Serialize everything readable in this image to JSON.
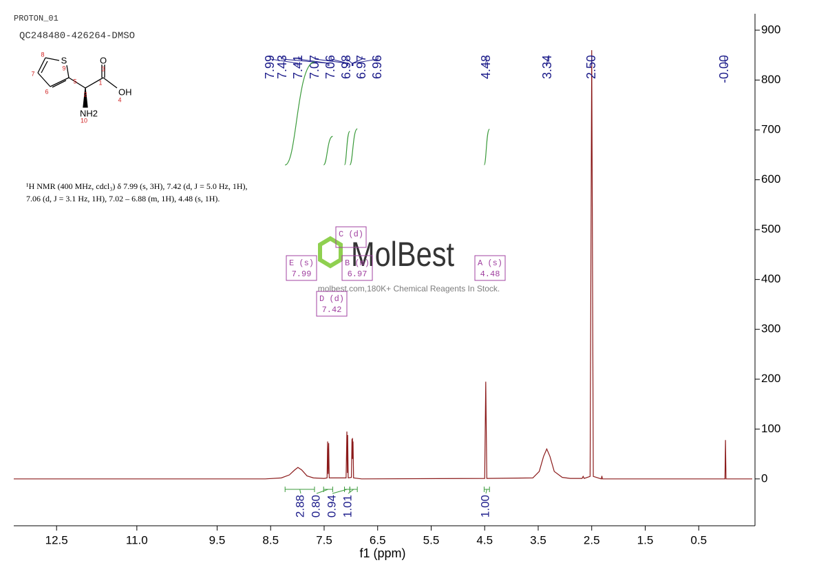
{
  "header": {
    "experiment": "PROTON_01",
    "sample": "QC248480-426264-DMSO"
  },
  "structure": {
    "atoms": [
      "S",
      "O",
      "OH",
      "NH2"
    ],
    "locants": [
      "1",
      "2",
      "3",
      "4",
      "5",
      "6",
      "7",
      "8",
      "9",
      "10"
    ]
  },
  "report": [
    "¹H NMR (400 MHz, cdcl₃) δ 7.99 (s, 3H), 7.42 (d, J = 5.0 Hz, 1H),",
    "7.06 (d, J = 3.1 Hz, 1H), 7.02 – 6.88 (m, 1H), 4.48 (s, 1H)."
  ],
  "watermark": {
    "brand": "MolBest",
    "tagline": "molbest.com,180K+ Chemical Reagents In Stock."
  },
  "chart_data": {
    "type": "line",
    "xlabel": "f1 (ppm)",
    "xlim": [
      13.3,
      -0.5
    ],
    "ylim": [
      -94,
      933
    ],
    "xticks": [
      12.5,
      {
        "value": 11,
        "label": "11.0"
      },
      9.5,
      8.5,
      7.5,
      6.5,
      5.5,
      4.5,
      3.5,
      2.5,
      1.5,
      0.5
    ],
    "yticks": [
      0,
      100,
      200,
      300,
      400,
      500,
      600,
      700,
      800,
      900
    ],
    "x": [
      13.3,
      8.6,
      8.3,
      8.15,
      8.05,
      7.99,
      7.92,
      7.82,
      7.7,
      7.5,
      7.445,
      7.435,
      7.425,
      7.415,
      7.405,
      7.09,
      7.075,
      7.065,
      7.06,
      7.05,
      6.99,
      6.98,
      6.975,
      6.97,
      6.965,
      6.96,
      6.95,
      6.8,
      4.5,
      4.48,
      4.46,
      3.6,
      3.48,
      3.4,
      3.34,
      3.28,
      3.2,
      3.05,
      2.9,
      2.68,
      2.66,
      2.64,
      2.53,
      2.5,
      2.47,
      2.32,
      2.31,
      2.3,
      0.01,
      0,
      -0.01,
      -0.5
    ],
    "series": [
      {
        "name": "spectrum",
        "color": "#8b1a1a",
        "values": [
          0,
          0,
          2,
          8,
          18,
          23,
          18,
          6,
          2,
          1,
          2,
          75,
          10,
          72,
          2,
          2,
          95,
          12,
          88,
          2,
          3,
          80,
          40,
          82,
          40,
          75,
          2,
          0,
          1,
          195,
          1,
          2,
          15,
          45,
          60,
          45,
          15,
          3,
          1,
          1,
          5,
          1,
          5,
          860,
          5,
          0,
          6,
          0,
          0,
          78,
          0,
          0
        ]
      }
    ],
    "peak_labels": [
      7.99,
      7.43,
      7.41,
      7.07,
      7.06,
      6.98,
      6.97,
      6.96,
      4.48,
      3.34,
      {
        "value": 2.5,
        "label": "2.50"
      },
      {
        "value": 0,
        "label": "-0.00"
      }
    ],
    "integrals": [
      {
        "value": 2.88,
        "from": 8.23,
        "to": 7.68
      },
      {
        "value": {
          "value": 0.8,
          "label": "0.80"
        },
        "from": 7.51,
        "to": 7.34
      },
      {
        "value": 0.94,
        "from": 7.12,
        "to": 7.02
      },
      {
        "value": 1.01,
        "from": 7.02,
        "to": 6.88
      },
      {
        "value": {
          "value": 1,
          "label": "1.00"
        },
        "from": 4.51,
        "to": 4.41
      }
    ],
    "multiplets": [
      {
        "name": "E (s)",
        "shift": "7.99"
      },
      {
        "name": "C (d)"
      },
      {
        "name": "B (m)",
        "shift": "6.97"
      },
      {
        "name": "D (d)",
        "shift": "7.42"
      },
      {
        "name": "A (s)",
        "shift": "4.48"
      }
    ]
  }
}
